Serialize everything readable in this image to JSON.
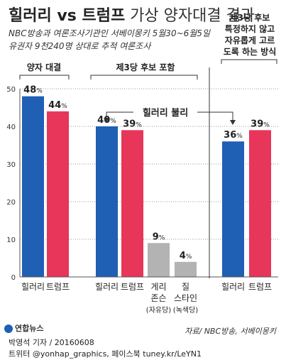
{
  "title": {
    "part1": "힐러리 vs 트럼프",
    "part2": " 가상 양자대결 결과"
  },
  "subtitle": [
    "NBC방송과 여론조사기관인 서베이몽키 5월30~6월5일",
    "유권자 9천240명 상대로 추적 여론조사"
  ],
  "footer": {
    "credit": "박영석 기자 / 20160608",
    "social": "트위터 @yonhap_graphics, 페이스북 tuney.kr/LeYN1",
    "logo": "연합뉴스",
    "source": "자료/ NBC방송, 서베이몽키"
  },
  "colors": {
    "clinton": "#1f5fb4",
    "trump": "#e8355a",
    "third": "#b3b3b3"
  },
  "chart_data": {
    "type": "bar",
    "ylim": [
      0,
      50
    ],
    "yticks": [
      0,
      10,
      20,
      30,
      40,
      50
    ],
    "annotation": "힐러리 불리",
    "groups": [
      {
        "label": "양자 대결",
        "bars": [
          {
            "name": "힐러리",
            "value": 48,
            "label": "48%",
            "color_key": "clinton"
          },
          {
            "name": "트럼프",
            "value": 44,
            "label": "44%",
            "color_key": "trump"
          }
        ]
      },
      {
        "label": "제3당 후보 포함",
        "bars": [
          {
            "name": "힐러리",
            "value": 40,
            "label": "40%",
            "color_key": "clinton"
          },
          {
            "name": "트럼프",
            "value": 39,
            "label": "39%",
            "color_key": "trump"
          },
          {
            "name": "게리 존슨 (자유당)",
            "lines": [
              "게리",
              "존슨",
              "(자유당)"
            ],
            "value": 9,
            "label": "9%",
            "color_key": "third"
          },
          {
            "name": "질 스타인 (녹색당)",
            "lines": [
              "질",
              "스타인",
              "(녹색당)"
            ],
            "value": 4,
            "label": "4%",
            "color_key": "third"
          }
        ]
      },
      {
        "label": "제3당 후보 특정하지 않고 자유롭게 고르도록 하는 방식",
        "label_lines": [
          "제3당 후보",
          "특정하지 않고",
          "자유롭게 고르",
          "도록 하는 방식"
        ],
        "bars": [
          {
            "name": "힐러리",
            "value": 36,
            "label": "36%",
            "color_key": "clinton"
          },
          {
            "name": "트럼프",
            "value": 39,
            "label": "39%",
            "color_key": "trump"
          }
        ]
      }
    ]
  }
}
